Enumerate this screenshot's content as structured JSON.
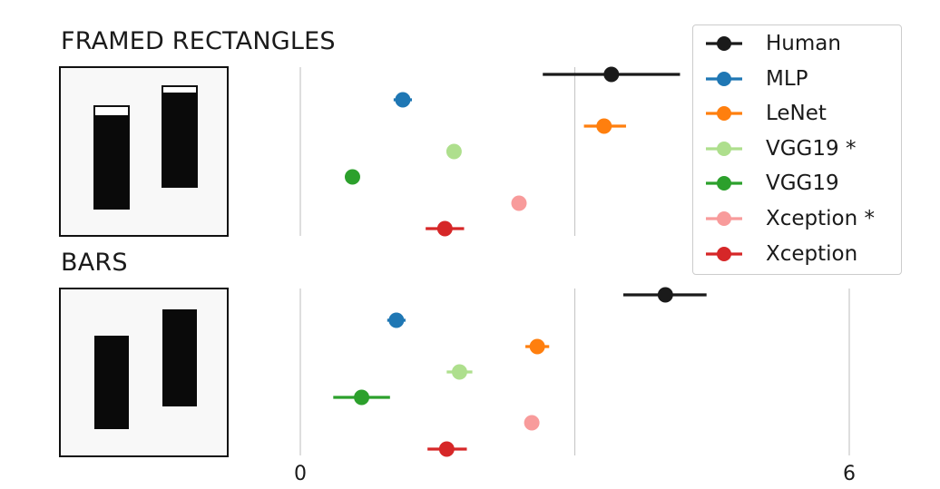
{
  "chart_data": [
    {
      "type": "scatter",
      "title": "FRAMED RECTANGLES",
      "xlim": [
        0,
        6
      ],
      "grid": true,
      "series": [
        {
          "name": "Human",
          "color": "#1a1a1a",
          "value": 3.4,
          "err": [
            2.65,
            4.15
          ]
        },
        {
          "name": "MLP",
          "color": "#1f77b4",
          "value": 1.12,
          "err": [
            1.02,
            1.22
          ]
        },
        {
          "name": "LeNet",
          "color": "#ff7f0e",
          "value": 3.32,
          "err": [
            3.1,
            3.56
          ]
        },
        {
          "name": "VGG19 *",
          "color": "#aedf8d",
          "value": 1.68,
          "err": [
            1.6,
            1.76
          ]
        },
        {
          "name": "VGG19",
          "color": "#2ca02c",
          "value": 0.57,
          "err": [
            0.5,
            0.64
          ]
        },
        {
          "name": "Xception *",
          "color": "#f89b9b",
          "value": 2.39,
          "err": [
            2.32,
            2.46
          ]
        },
        {
          "name": "Xception",
          "color": "#d62728",
          "value": 1.58,
          "err": [
            1.37,
            1.79
          ]
        }
      ]
    },
    {
      "type": "scatter",
      "title": "BARS",
      "xlim": [
        0,
        6
      ],
      "grid": true,
      "series": [
        {
          "name": "Human",
          "color": "#1a1a1a",
          "value": 3.99,
          "err": [
            3.53,
            4.44
          ]
        },
        {
          "name": "MLP",
          "color": "#1f77b4",
          "value": 1.05,
          "err": [
            0.95,
            1.15
          ]
        },
        {
          "name": "LeNet",
          "color": "#ff7f0e",
          "value": 2.59,
          "err": [
            2.46,
            2.72
          ]
        },
        {
          "name": "VGG19 *",
          "color": "#aedf8d",
          "value": 1.74,
          "err": [
            1.6,
            1.88
          ]
        },
        {
          "name": "VGG19",
          "color": "#2ca02c",
          "value": 0.67,
          "err": [
            0.36,
            0.98
          ]
        },
        {
          "name": "Xception *",
          "color": "#f89b9b",
          "value": 2.53,
          "err": [
            2.46,
            2.6
          ]
        },
        {
          "name": "Xception",
          "color": "#d62728",
          "value": 1.6,
          "err": [
            1.39,
            1.82
          ]
        }
      ]
    }
  ],
  "x_tick_labels": [
    "0",
    "6"
  ],
  "legend": {
    "position": "top-right",
    "items": [
      {
        "label": "Human",
        "color": "#1a1a1a"
      },
      {
        "label": "MLP",
        "color": "#1f77b4"
      },
      {
        "label": "LeNet",
        "color": "#ff7f0e"
      },
      {
        "label": "VGG19 *",
        "color": "#aedf8d"
      },
      {
        "label": "VGG19",
        "color": "#2ca02c"
      },
      {
        "label": "Xception *",
        "color": "#f89b9b"
      },
      {
        "label": "Xception",
        "color": "#d62728"
      }
    ]
  },
  "stimuli": [
    {
      "panel": "FRAMED RECTANGLES",
      "bars": [
        {
          "height": 103,
          "frame": 10
        },
        {
          "height": 104,
          "frame": 7
        }
      ]
    },
    {
      "panel": "BARS",
      "bars": [
        {
          "height": 103,
          "frame": 0
        },
        {
          "height": 107,
          "frame": 0
        }
      ]
    }
  ]
}
